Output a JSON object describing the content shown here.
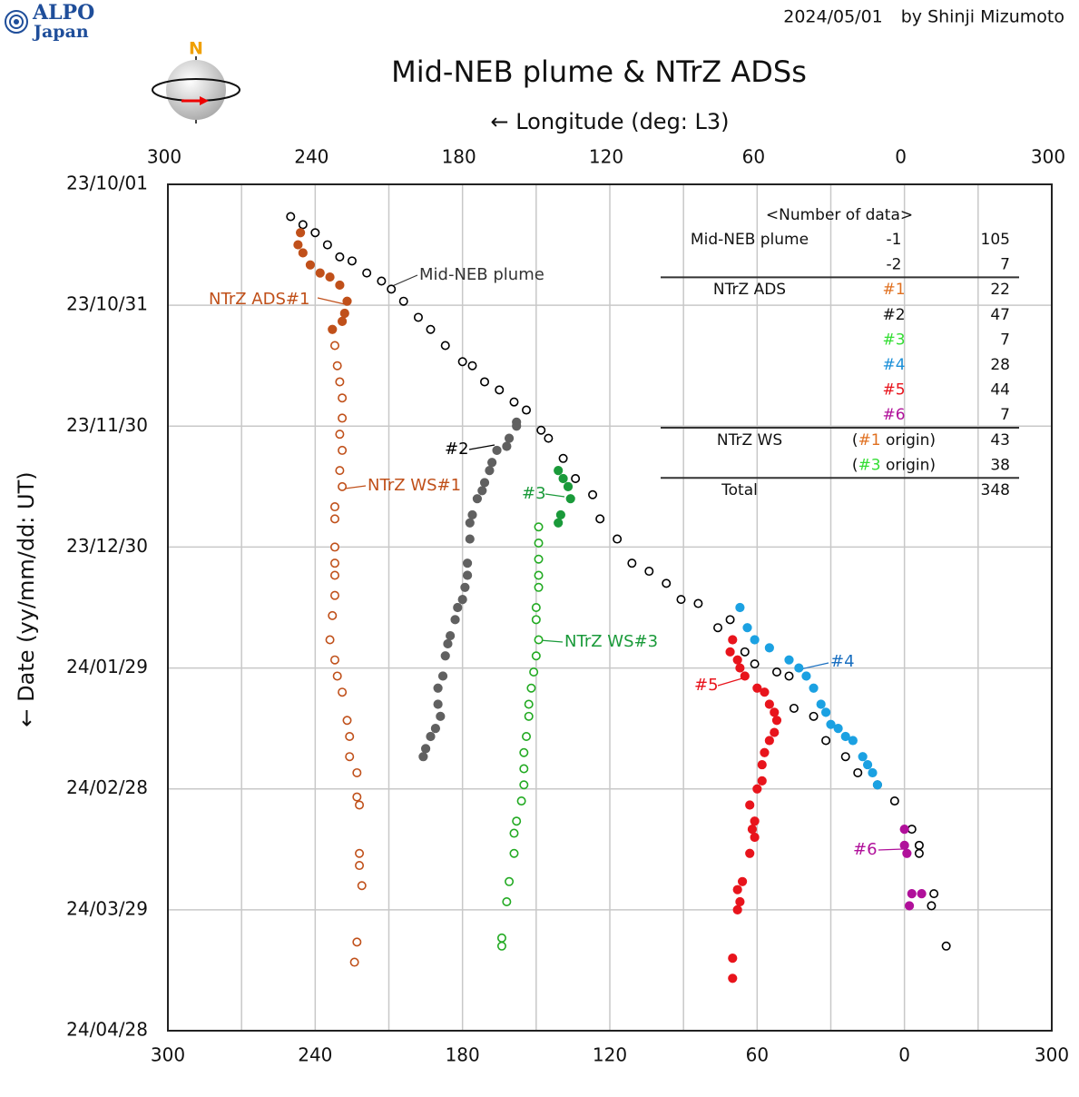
{
  "logo": {
    "line1": "ALPO",
    "line2": "Japan"
  },
  "date": "2024/05/01",
  "author": "by Shinji Mizumoto",
  "north": "N",
  "chart_data": {
    "type": "scatter",
    "title": "Mid-NEB plume & NTrZ ADSs",
    "x_label": "← Longitude (deg: L3)",
    "y_label": "← Date (yy/mm/dd: UT)",
    "xlim": [
      300,
      -60
    ],
    "xticks": [
      300,
      240,
      180,
      120,
      60,
      0,
      {
        "value": -60,
        "label": "300"
      }
    ],
    "x_minor_grid": [
      270,
      210,
      150,
      90,
      30,
      -30
    ],
    "ylim": [
      "23/10/01",
      "24/04/28"
    ],
    "yticks": [
      "23/10/01",
      "23/10/31",
      "23/11/30",
      "23/12/30",
      "24/01/29",
      "24/02/28",
      "24/03/29",
      "24/04/28"
    ],
    "grid": true,
    "series": [
      {
        "name": "Mid-NEB plume",
        "color": "#000000",
        "marker": "open",
        "x": [
          250,
          245,
          240,
          235,
          230,
          225,
          219,
          213,
          209,
          204,
          198,
          193,
          187,
          180,
          176,
          171,
          165,
          159,
          154,
          148,
          145,
          139,
          134,
          127,
          124,
          117,
          111,
          104,
          97,
          91,
          84,
          76,
          71,
          65,
          61,
          52,
          47,
          45,
          37,
          32,
          24,
          19,
          11,
          4,
          -3,
          -6,
          -6,
          -12,
          -11,
          -17
        ],
        "values": [
          "23/10/09",
          "23/10/11",
          "23/10/13",
          "23/10/16",
          "23/10/19",
          "23/10/20",
          "23/10/23",
          "23/10/25",
          "23/10/27",
          "23/10/30",
          "23/11/03",
          "23/11/06",
          "23/11/10",
          "23/11/14",
          "23/11/15",
          "23/11/19",
          "23/11/21",
          "23/11/24",
          "23/11/26",
          "23/12/01",
          "23/12/03",
          "23/12/08",
          "23/12/13",
          "23/12/17",
          "23/12/23",
          "23/12/28",
          "24/01/03",
          "24/01/05",
          "24/01/08",
          "24/01/12",
          "24/01/13",
          "24/01/19",
          "24/01/17",
          "24/01/25",
          "24/01/28",
          "24/01/30",
          "24/01/31",
          "24/02/08",
          "24/02/10",
          "24/02/16",
          "24/02/20",
          "24/02/24",
          "24/02/27",
          "24/03/02",
          "24/03/09",
          "24/03/13",
          "24/03/15",
          "24/03/25",
          "24/03/28",
          "24/04/07"
        ]
      },
      {
        "name": "#2",
        "color": "#606060",
        "marker": "filled",
        "x": [
          158,
          158,
          161,
          162,
          166,
          168,
          169,
          171,
          172,
          174,
          176,
          177,
          177,
          178,
          178,
          179,
          180,
          182,
          183,
          185,
          186,
          187,
          188,
          190,
          190,
          189,
          191,
          193,
          195,
          196
        ],
        "values": [
          "23/11/29",
          "23/11/30",
          "23/12/03",
          "23/12/05",
          "23/12/06",
          "23/12/09",
          "23/12/11",
          "23/12/14",
          "23/12/16",
          "23/12/18",
          "23/12/22",
          "23/12/24",
          "23/12/28",
          "24/01/03",
          "24/01/06",
          "24/01/09",
          "24/01/12",
          "24/01/14",
          "24/01/17",
          "24/01/21",
          "24/01/23",
          "24/01/26",
          "24/01/31",
          "24/02/03",
          "24/02/07",
          "24/02/10",
          "24/02/13",
          "24/02/15",
          "24/02/18",
          "24/02/20"
        ]
      },
      {
        "name": "NTrZ ADS#1",
        "color": "#c0501a",
        "marker": "filled",
        "x": [
          246,
          247,
          245,
          242,
          238,
          234,
          230,
          227,
          228,
          229,
          233
        ],
        "values": [
          "23/10/13",
          "23/10/16",
          "23/10/18",
          "23/10/21",
          "23/10/23",
          "23/10/24",
          "23/10/26",
          "23/10/30",
          "23/11/02",
          "23/11/04",
          "23/11/06"
        ]
      },
      {
        "name": "NTrZ WS#1",
        "color": "#c0501a",
        "marker": "open",
        "x": [
          232,
          231,
          230,
          229,
          229,
          230,
          229,
          230,
          229,
          232,
          232,
          232,
          232,
          232,
          232,
          233,
          234,
          232,
          231,
          229,
          227,
          226,
          226,
          223,
          223,
          222,
          222,
          222,
          221,
          223,
          224
        ],
        "values": [
          "23/11/10",
          "23/11/15",
          "23/11/19",
          "23/11/23",
          "23/11/28",
          "23/12/02",
          "23/12/06",
          "23/12/11",
          "23/12/15",
          "23/12/20",
          "23/12/23",
          "23/12/30",
          "24/01/03",
          "24/01/06",
          "24/01/11",
          "24/01/16",
          "24/01/22",
          "24/01/27",
          "24/01/31",
          "24/02/04",
          "24/02/11",
          "24/02/15",
          "24/02/20",
          "24/02/24",
          "24/03/01",
          "24/03/03",
          "24/03/15",
          "24/03/18",
          "24/03/23",
          "24/04/06",
          "24/04/11"
        ]
      },
      {
        "name": "#3",
        "color": "#1a9a3a",
        "marker": "filled",
        "x": [
          141,
          139,
          137,
          136,
          140,
          141
        ],
        "values": [
          "23/12/11",
          "23/12/13",
          "23/12/15",
          "23/12/18",
          "23/12/22",
          "23/12/24"
        ]
      },
      {
        "name": "NTrZ WS#3",
        "color": "#22aa22",
        "marker": "open",
        "x": [
          149,
          149,
          149,
          149,
          149,
          150,
          150,
          149,
          150,
          151,
          152,
          153,
          153,
          154,
          155,
          155,
          155,
          156,
          158,
          159,
          159,
          161,
          162,
          164,
          164
        ],
        "values": [
          "23/12/25",
          "23/12/29",
          "24/01/02",
          "24/01/06",
          "24/01/09",
          "24/01/14",
          "24/01/17",
          "24/01/22",
          "24/01/26",
          "24/01/30",
          "24/02/03",
          "24/02/07",
          "24/02/10",
          "24/02/15",
          "24/02/19",
          "24/02/23",
          "24/02/27",
          "24/03/02",
          "24/03/07",
          "24/03/10",
          "24/03/15",
          "24/03/22",
          "24/03/27",
          "24/04/05",
          "24/04/07"
        ]
      },
      {
        "name": "#4",
        "color": "#1ba1e2",
        "marker": "filled",
        "x": [
          67,
          64,
          61,
          55,
          47,
          43,
          40,
          37,
          34,
          32,
          30,
          27,
          24,
          21,
          17,
          15,
          13,
          11
        ],
        "values": [
          "24/01/14",
          "24/01/19",
          "24/01/22",
          "24/01/24",
          "24/01/27",
          "24/01/29",
          "24/01/31",
          "24/02/03",
          "24/02/07",
          "24/02/09",
          "24/02/12",
          "24/02/13",
          "24/02/15",
          "24/02/16",
          "24/02/20",
          "24/02/22",
          "24/02/24",
          "24/02/27"
        ]
      },
      {
        "name": "#5",
        "color": "#e8141c",
        "marker": "filled",
        "x": [
          70,
          71,
          68,
          67,
          65,
          60,
          57,
          55,
          53,
          52,
          53,
          55,
          57,
          58,
          58,
          60,
          63,
          61,
          62,
          61,
          63,
          66,
          68,
          67,
          68,
          70,
          70
        ],
        "values": [
          "24/01/22",
          "24/01/25",
          "24/01/27",
          "24/01/29",
          "24/01/31",
          "24/02/03",
          "24/02/04",
          "24/02/07",
          "24/02/09",
          "24/02/11",
          "24/02/14",
          "24/02/16",
          "24/02/19",
          "24/02/22",
          "24/02/26",
          "24/02/28",
          "24/03/03",
          "24/03/07",
          "24/03/09",
          "24/03/11",
          "24/03/15",
          "24/03/22",
          "24/03/24",
          "24/03/27",
          "24/03/29",
          "24/04/10",
          "24/04/15"
        ]
      },
      {
        "name": "#6",
        "color": "#b0109a",
        "marker": "filled",
        "x": [
          0,
          0,
          -1,
          -3,
          -7,
          -2
        ],
        "values": [
          "24/03/09",
          "24/03/13",
          "24/03/15",
          "24/03/25",
          "24/03/25",
          "24/03/28"
        ]
      }
    ],
    "annotations": [
      {
        "text": "Mid-NEB plume",
        "color": "#333333"
      },
      {
        "text": "NTrZ ADS#1",
        "color": "#c0501a"
      },
      {
        "text": "#2",
        "color": "#000000"
      },
      {
        "text": "NTrZ WS#1",
        "color": "#c0501a"
      },
      {
        "text": "#3",
        "color": "#1a9a3a"
      },
      {
        "text": "NTrZ WS#3",
        "color": "#1a9a3a"
      },
      {
        "text": "#4",
        "color": "#1a6fc0"
      },
      {
        "text": "#5",
        "color": "#e8141c"
      },
      {
        "text": "#6",
        "color": "#b0109a"
      }
    ],
    "data_table": {
      "title": "<Number of data>",
      "rows": [
        {
          "group": "Mid-NEB plume",
          "sub": [
            {
              "text": "-1"
            }
          ],
          "count": 105
        },
        {
          "sub": [
            {
              "text": "-2"
            }
          ],
          "count": 7
        },
        {
          "group": "NTrZ ADS",
          "sub": [
            {
              "text": "#1",
              "color": "#e07020"
            }
          ],
          "count": 22
        },
        {
          "sub": [
            {
              "text": "#2"
            }
          ],
          "count": 47
        },
        {
          "sub": [
            {
              "text": "#3",
              "color": "#33dd33"
            }
          ],
          "count": 7
        },
        {
          "sub": [
            {
              "text": "#4",
              "color": "#1b8fd8"
            }
          ],
          "count": 28
        },
        {
          "sub": [
            {
              "text": "#5",
              "color": "#e8141c"
            }
          ],
          "count": 44
        },
        {
          "sub": [
            {
              "text": "#6",
              "color": "#b0109a"
            }
          ],
          "count": 7
        },
        {
          "group": "NTrZ WS",
          "sub": [
            {
              "text": "("
            },
            {
              "text": "#1",
              "color": "#e07020"
            },
            {
              "text": " origin)"
            }
          ],
          "count": 43
        },
        {
          "sub": [
            {
              "text": "("
            },
            {
              "text": "#3",
              "color": "#33dd33"
            },
            {
              "text": " origin)"
            }
          ],
          "count": 38
        },
        {
          "group": "Total",
          "count": 348
        }
      ]
    }
  }
}
